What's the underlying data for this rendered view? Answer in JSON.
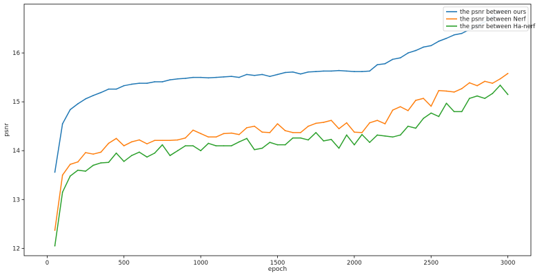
{
  "chart_data": {
    "type": "line",
    "title": "",
    "xlabel": "epoch",
    "ylabel": "psnr",
    "xlim": [
      -150,
      3150
    ],
    "ylim": [
      11.85,
      17.0
    ],
    "xticks": [
      0,
      500,
      1000,
      1500,
      2000,
      2500,
      3000
    ],
    "yticks": [
      12,
      13,
      14,
      15,
      16
    ],
    "grid": false,
    "legend_position": "top-right",
    "x": [
      50,
      100,
      150,
      200,
      250,
      300,
      350,
      400,
      450,
      500,
      550,
      600,
      650,
      700,
      750,
      800,
      850,
      900,
      950,
      1000,
      1050,
      1100,
      1150,
      1200,
      1250,
      1300,
      1350,
      1400,
      1450,
      1500,
      1550,
      1600,
      1650,
      1700,
      1750,
      1800,
      1850,
      1900,
      1950,
      2000,
      2050,
      2100,
      2150,
      2200,
      2250,
      2300,
      2350,
      2400,
      2450,
      2500,
      2550,
      2600,
      2650,
      2700,
      2750,
      2800,
      2850,
      2900,
      2950,
      3000
    ],
    "series": [
      {
        "name": "the psnr between ours",
        "color": "#1f77b4",
        "values": [
          13.56,
          14.55,
          14.84,
          14.96,
          15.06,
          15.13,
          15.19,
          15.26,
          15.26,
          15.33,
          15.36,
          15.38,
          15.38,
          15.41,
          15.41,
          15.45,
          15.47,
          15.48,
          15.5,
          15.5,
          15.49,
          15.5,
          15.51,
          15.52,
          15.5,
          15.56,
          15.54,
          15.56,
          15.52,
          15.56,
          15.6,
          15.61,
          15.57,
          15.61,
          15.62,
          15.63,
          15.63,
          15.64,
          15.63,
          15.62,
          15.62,
          15.63,
          15.76,
          15.78,
          15.87,
          15.9,
          16.0,
          16.05,
          16.12,
          16.15,
          16.24,
          16.3,
          16.37,
          16.4,
          16.48,
          16.56,
          16.64,
          16.75,
          16.85,
          16.88
        ]
      },
      {
        "name": "the psnr between Nerf",
        "color": "#ff7f0e",
        "values": [
          12.37,
          13.5,
          13.72,
          13.77,
          13.96,
          13.93,
          13.97,
          14.15,
          14.25,
          14.1,
          14.18,
          14.22,
          14.14,
          14.21,
          14.21,
          14.21,
          14.22,
          14.26,
          14.42,
          14.35,
          14.28,
          14.28,
          14.35,
          14.36,
          14.33,
          14.47,
          14.5,
          14.38,
          14.37,
          14.55,
          14.41,
          14.37,
          14.37,
          14.5,
          14.56,
          14.58,
          14.62,
          14.45,
          14.57,
          14.38,
          14.37,
          14.57,
          14.62,
          14.55,
          14.83,
          14.9,
          14.82,
          15.03,
          15.07,
          14.91,
          15.23,
          15.22,
          15.2,
          15.27,
          15.39,
          15.33,
          15.42,
          15.38,
          15.47,
          15.58
        ]
      },
      {
        "name": "the psnr between Ha-nerf",
        "color": "#2ca02c",
        "values": [
          12.05,
          13.15,
          13.48,
          13.6,
          13.58,
          13.7,
          13.75,
          13.76,
          13.95,
          13.78,
          13.9,
          13.97,
          13.87,
          13.95,
          14.12,
          13.9,
          14.0,
          14.1,
          14.1,
          14.0,
          14.15,
          14.1,
          14.1,
          14.1,
          14.18,
          14.25,
          14.02,
          14.05,
          14.17,
          14.12,
          14.12,
          14.26,
          14.26,
          14.22,
          14.37,
          14.2,
          14.23,
          14.05,
          14.32,
          14.12,
          14.33,
          14.17,
          14.32,
          14.3,
          14.28,
          14.32,
          14.5,
          14.46,
          14.66,
          14.77,
          14.7,
          14.97,
          14.8,
          14.8,
          15.07,
          15.12,
          15.07,
          15.17,
          15.34,
          15.15
        ]
      }
    ]
  }
}
